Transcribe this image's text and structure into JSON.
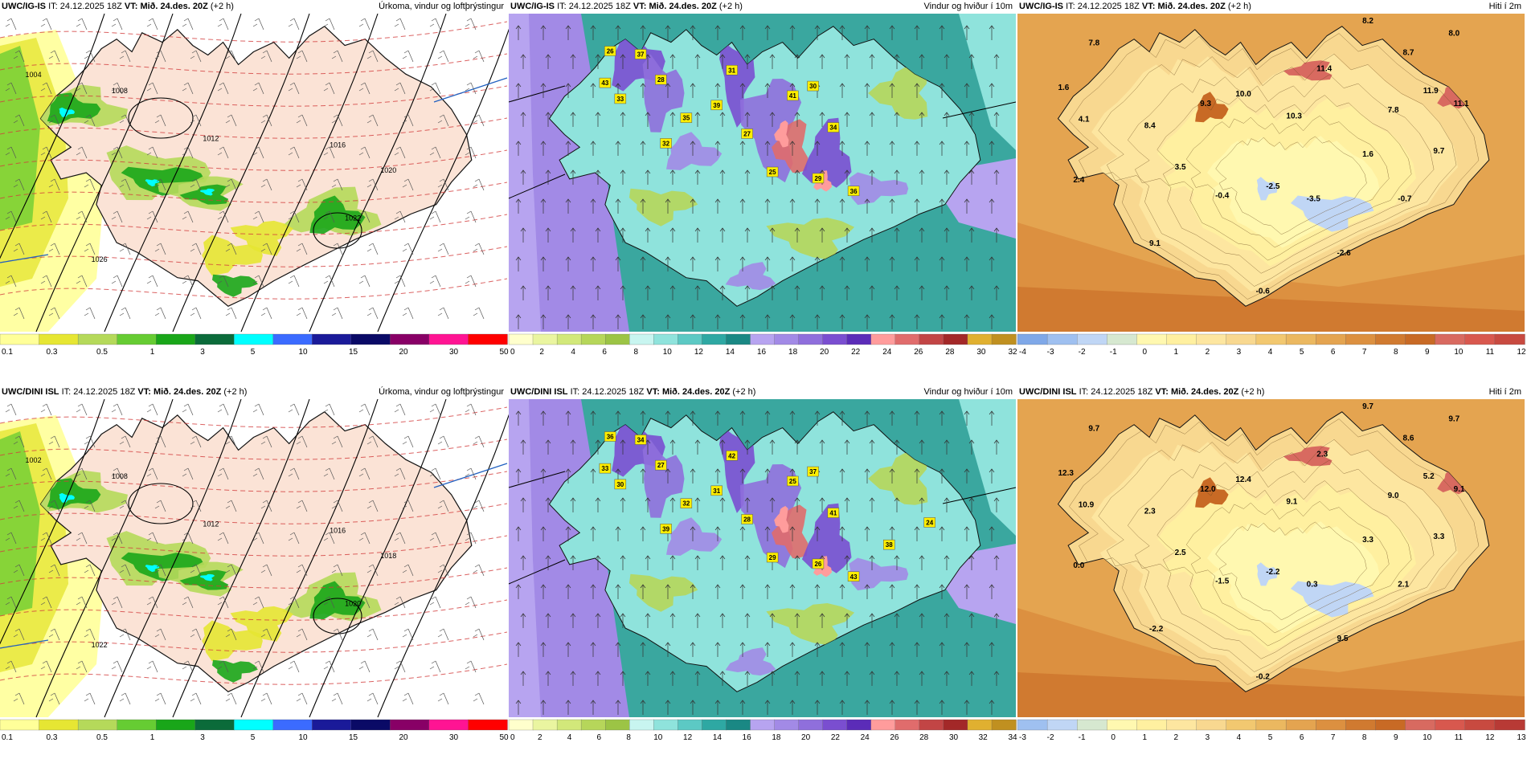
{
  "panels": [
    {
      "row": 0,
      "col": 0,
      "type": "precip",
      "model": "UWC/IG-IS",
      "init_label": "IT:",
      "init": "24.12.2025 18Z",
      "valid_label": "VT:",
      "valid": "Mið. 24.des. 20Z",
      "lead": "(+2 h)",
      "title": "Úrkoma, vindur og loftþrýstingur",
      "colorbar": {
        "colors": [
          "#ffff99",
          "#e6e633",
          "#b5d95a",
          "#66cc33",
          "#19a619",
          "#0b6b3a",
          "#00ffff",
          "#3b6bff",
          "#1a1a99",
          "#0a0a66",
          "#880066",
          "#ff1493",
          "#ff0000"
        ],
        "labels": [
          "0.1",
          "0.3",
          "0.5",
          "1",
          "3",
          "5",
          "10",
          "15",
          "20",
          "30",
          "50"
        ]
      },
      "value_labels": [
        "1004",
        "1008",
        "1012",
        "1016",
        "1020",
        "1022",
        "1026"
      ]
    },
    {
      "row": 0,
      "col": 1,
      "type": "wind",
      "model": "UWC/IG-IS",
      "init_label": "IT:",
      "init": "24.12.2025 18Z",
      "valid_label": "VT:",
      "valid": "Mið. 24.des. 20Z",
      "lead": "(+2 h)",
      "title": "Vindur og hviður í 10m",
      "colorbar": {
        "colors": [
          "#ffffcc",
          "#eaf5a0",
          "#d2e87a",
          "#b6d65a",
          "#9cc445",
          "#c8f5f0",
          "#8fe3dc",
          "#5cc9c4",
          "#2ea8a3",
          "#1a8884",
          "#b7a4f0",
          "#a28ae6",
          "#8f6fdc",
          "#7a4ed0",
          "#5b2cb8",
          "#ff9c9c",
          "#e06c6c",
          "#c24545",
          "#a32828",
          "#e0b030",
          "#c09020"
        ],
        "labels": [
          "0",
          "2",
          "4",
          "6",
          "8",
          "10",
          "12",
          "14",
          "16",
          "18",
          "20",
          "22",
          "24",
          "26",
          "28",
          "30",
          "32"
        ]
      },
      "value_labels": [
        "26",
        "37",
        "43",
        "33",
        "28",
        "35",
        "32",
        "31",
        "39",
        "41",
        "27",
        "30",
        "34",
        "25",
        "29",
        "36"
      ]
    },
    {
      "row": 0,
      "col": 2,
      "type": "temp",
      "model": "UWC/IG-IS",
      "init_label": "IT:",
      "init": "24.12.2025 18Z",
      "valid_label": "VT:",
      "valid": "Mið. 24.des. 20Z",
      "lead": "(+2 h)",
      "title": "Hiti í 2m",
      "colorbar": {
        "colors": [
          "#7fa8e8",
          "#9fc0f0",
          "#c0d6f5",
          "#d6e8d0",
          "#fff8b0",
          "#fff0a0",
          "#fde6a0",
          "#f8d890",
          "#f2c870",
          "#ebb860",
          "#e4a450",
          "#dc9040",
          "#d07a30",
          "#c86a25",
          "#d86a60",
          "#d8584e",
          "#c84a40"
        ],
        "labels": [
          "-4",
          "-3",
          "-2",
          "-1",
          "0",
          "1",
          "2",
          "3",
          "4",
          "5",
          "6",
          "7",
          "8",
          "9",
          "10",
          "11",
          "12"
        ]
      },
      "value_labels": [
        "8.2",
        "8.0",
        "7.8",
        "8.7",
        "11.4",
        "1.6",
        "9.3",
        "10.0",
        "11.9",
        "11.1",
        "4.1",
        "8.4",
        "10.3",
        "7.8",
        "1.6",
        "9.7",
        "3.5",
        "2.4",
        "-0.4",
        "-2.5",
        "-3.5",
        "-0.7",
        "9.1",
        "-2.6",
        "-0.6"
      ]
    },
    {
      "row": 1,
      "col": 0,
      "type": "precip",
      "model": "UWC/DINI ISL",
      "init_label": "IT:",
      "init": "24.12.2025 18Z",
      "valid_label": "VT:",
      "valid": "Mið. 24.des. 20Z",
      "lead": "(+2 h)",
      "title": "Úrkoma, vindur og loftþrýstingur",
      "colorbar": {
        "colors": [
          "#ffff99",
          "#e6e633",
          "#b5d95a",
          "#66cc33",
          "#19a619",
          "#0b6b3a",
          "#00ffff",
          "#3b6bff",
          "#1a1a99",
          "#0a0a66",
          "#880066",
          "#ff1493",
          "#ff0000"
        ],
        "labels": [
          "0.1",
          "0.3",
          "0.5",
          "1",
          "3",
          "5",
          "10",
          "15",
          "20",
          "30",
          "50"
        ]
      },
      "value_labels": [
        "1002",
        "1008",
        "1012",
        "1016",
        "1018",
        "1020",
        "1022"
      ]
    },
    {
      "row": 1,
      "col": 1,
      "type": "wind",
      "model": "UWC/DINI ISL",
      "init_label": "IT:",
      "init": "24.12.2025 18Z",
      "valid_label": "VT:",
      "valid": "Mið. 24.des. 20Z",
      "lead": "(+2 h)",
      "title": "Vindur og hviður í 10m",
      "colorbar": {
        "colors": [
          "#ffffcc",
          "#eaf5a0",
          "#d2e87a",
          "#b6d65a",
          "#9cc445",
          "#c8f5f0",
          "#8fe3dc",
          "#5cc9c4",
          "#2ea8a3",
          "#1a8884",
          "#b7a4f0",
          "#a28ae6",
          "#8f6fdc",
          "#7a4ed0",
          "#5b2cb8",
          "#ff9c9c",
          "#e06c6c",
          "#c24545",
          "#a32828",
          "#e0b030",
          "#c09020"
        ],
        "labels": [
          "0",
          "2",
          "4",
          "6",
          "8",
          "10",
          "12",
          "14",
          "16",
          "18",
          "20",
          "22",
          "24",
          "26",
          "28",
          "30",
          "32",
          "34"
        ]
      },
      "value_labels": [
        "36",
        "34",
        "33",
        "30",
        "27",
        "32",
        "39",
        "42",
        "31",
        "25",
        "28",
        "37",
        "41",
        "29",
        "26",
        "43",
        "38",
        "24"
      ]
    },
    {
      "row": 1,
      "col": 2,
      "type": "temp",
      "model": "UWC/DINI ISL",
      "init_label": "IT:",
      "init": "24.12.2025 18Z",
      "valid_label": "VT:",
      "valid": "Mið. 24.des. 20Z",
      "lead": "(+2 h)",
      "title": "Hiti í 2m",
      "colorbar": {
        "colors": [
          "#9fc0f0",
          "#c0d6f5",
          "#d6e8d0",
          "#fff8b0",
          "#fff0a0",
          "#fde6a0",
          "#f8d890",
          "#f2c870",
          "#ebb860",
          "#e4a450",
          "#dc9040",
          "#d07a30",
          "#c86a25",
          "#d86a60",
          "#d8584e",
          "#c84a40",
          "#b83a35"
        ],
        "labels": [
          "-3",
          "-2",
          "-1",
          "0",
          "1",
          "2",
          "3",
          "4",
          "5",
          "6",
          "7",
          "8",
          "9",
          "10",
          "11",
          "12",
          "13"
        ]
      },
      "value_labels": [
        "9.7",
        "9.7",
        "9.7",
        "8.6",
        "2.3",
        "12.3",
        "12.0",
        "12.4",
        "5.2",
        "9.1",
        "10.9",
        "2.3",
        "9.1",
        "9.0",
        "3.3",
        "3.3",
        "2.5",
        "0.0",
        "-1.5",
        "-2.2",
        "0.3",
        "2.1",
        "-2.2",
        "9.5",
        "-0.2"
      ]
    }
  ]
}
